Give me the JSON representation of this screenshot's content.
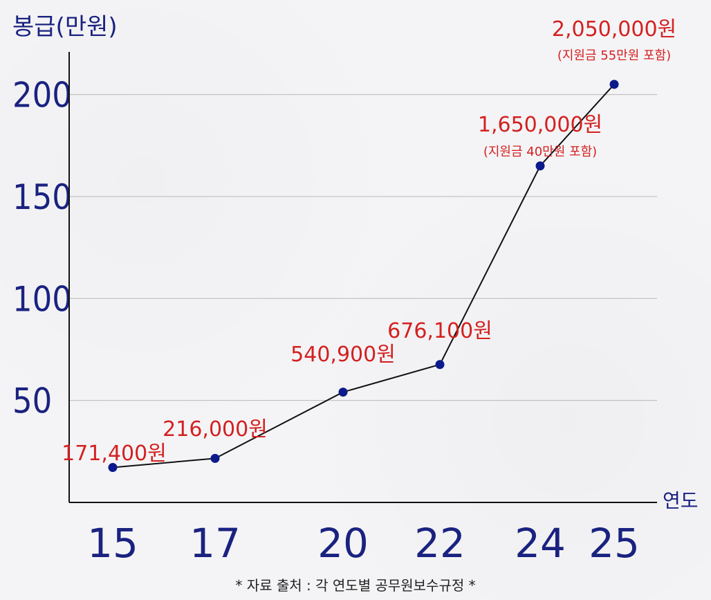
{
  "chart_data": {
    "type": "line",
    "ylabel": "봉급(만원)",
    "xlabel": "연도",
    "x": [
      "15",
      "17",
      "20",
      "22",
      "24",
      "25"
    ],
    "xvals": [
      15,
      17,
      20,
      22,
      24,
      25
    ],
    "yticks": [
      50,
      100,
      150,
      200
    ],
    "ylim": [
      0,
      220
    ],
    "grid": true,
    "series": [
      {
        "values": [
          17.14,
          21.6,
          54.09,
          67.61,
          165,
          205
        ]
      }
    ],
    "data_labels": [
      "171,400원",
      "216,000원",
      "540,900원",
      "676,100원",
      "1,650,000원",
      "2,050,000원"
    ],
    "notes": [
      "",
      "",
      "",
      "",
      "(지원금 40만원 포함)",
      "(지원금 55만원 포함)"
    ],
    "source": "* 자료 출처 : 각 연도별 공무원보수규정 *"
  }
}
